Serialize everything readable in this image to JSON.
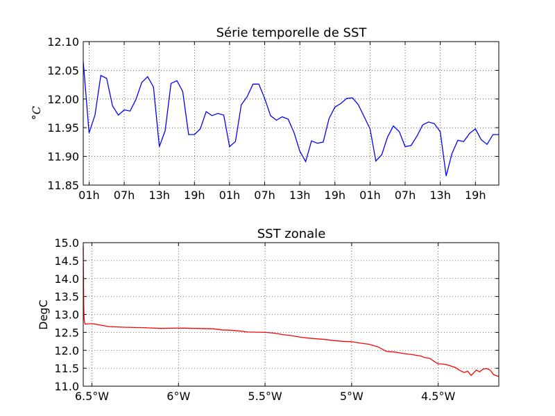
{
  "chart_data": [
    {
      "type": "line",
      "title": "Série temporelle de SST",
      "xlabel": "",
      "ylabel": "$^\\circ C$",
      "ylabel_display": "°C",
      "ylim": [
        11.85,
        12.1
      ],
      "yticks": [
        "11.85",
        "11.90",
        "11.95",
        "12.00",
        "12.05",
        "12.10"
      ],
      "xticks": [
        "01h",
        "07h",
        "13h",
        "19h",
        "01h",
        "07h",
        "13h",
        "19h",
        "01h",
        "07h",
        "13h",
        "19h"
      ],
      "xlim_hours": [
        0,
        71
      ],
      "grid": true,
      "color": "#0000ff",
      "series": [
        {
          "x": [
            0,
            1,
            2,
            3,
            4,
            5,
            6,
            7,
            8,
            9,
            10,
            11,
            12,
            13,
            14,
            15,
            16,
            17,
            18,
            19,
            20,
            21,
            22,
            23,
            24,
            25,
            26,
            27,
            28,
            29,
            30,
            31,
            32,
            33,
            34,
            35,
            36,
            37,
            38,
            39,
            40,
            41,
            42,
            43,
            44,
            45,
            46,
            47,
            48,
            49,
            50,
            51,
            52,
            53,
            54,
            55,
            56,
            57,
            58,
            59,
            60,
            61,
            62,
            63,
            64,
            65,
            66,
            67,
            68,
            69,
            70,
            71
          ],
          "y": [
            12.065,
            11.941,
            11.972,
            12.041,
            12.036,
            11.988,
            11.972,
            11.981,
            11.979,
            11.999,
            12.029,
            12.039,
            12.021,
            11.917,
            11.945,
            12.027,
            12.032,
            12.013,
            11.938,
            11.938,
            11.948,
            11.978,
            11.971,
            11.975,
            11.972,
            11.917,
            11.926,
            11.99,
            12.004,
            12.026,
            12.026,
            12.001,
            11.971,
            11.963,
            11.969,
            11.965,
            11.942,
            11.909,
            11.891,
            11.927,
            11.923,
            11.925,
            11.966,
            11.986,
            11.992,
            12.001,
            12.002,
            11.99,
            11.969,
            11.948,
            11.892,
            11.903,
            11.934,
            11.953,
            11.943,
            11.917,
            11.919,
            11.935,
            11.955,
            11.96,
            11.957,
            11.943,
            11.866,
            11.905,
            11.928,
            11.926,
            11.94,
            11.948,
            11.929,
            11.921,
            11.938,
            11.938
          ]
        }
      ]
    },
    {
      "type": "line",
      "title": "SST zonale",
      "xlabel": "",
      "ylabel": "DegC",
      "ylim": [
        11.0,
        15.0
      ],
      "yticks": [
        "11.0",
        "11.5",
        "12.0",
        "12.5",
        "13.0",
        "13.5",
        "14.0",
        "14.5",
        "15.0"
      ],
      "xticks": [
        {
          "value": -6.5,
          "label": "6.5°W"
        },
        {
          "value": -6.0,
          "label": "6°W"
        },
        {
          "value": -5.5,
          "label": "5.5°W"
        },
        {
          "value": -5.0,
          "label": "5°W"
        },
        {
          "value": -4.5,
          "label": "4.5°W"
        }
      ],
      "xlim": [
        -6.55,
        -4.15
      ],
      "grid": true,
      "color": "#ff0000",
      "series": [
        {
          "x": [
            -6.55,
            -6.549,
            -6.547,
            -6.545,
            -6.543,
            -6.54,
            -6.535,
            -6.52,
            -6.5,
            -6.48,
            -6.45,
            -6.4,
            -6.3,
            -6.2,
            -6.1,
            -6.0,
            -5.9,
            -5.8,
            -5.75,
            -5.7,
            -5.65,
            -5.6,
            -5.5,
            -5.45,
            -5.4,
            -5.35,
            -5.3,
            -5.25,
            -5.2,
            -5.15,
            -5.1,
            -5.05,
            -5.0,
            -4.95,
            -4.9,
            -4.85,
            -4.83,
            -4.8,
            -4.78,
            -4.75,
            -4.7,
            -4.65,
            -4.6,
            -4.58,
            -4.55,
            -4.52,
            -4.5,
            -4.48,
            -4.45,
            -4.42,
            -4.4,
            -4.38,
            -4.35,
            -4.33,
            -4.31,
            -4.3,
            -4.28,
            -4.26,
            -4.24,
            -4.22,
            -4.2,
            -4.18,
            -4.15
          ],
          "y": [
            14.9,
            14.3,
            13.3,
            12.9,
            12.8,
            12.74,
            12.73,
            12.74,
            12.74,
            12.73,
            12.7,
            12.66,
            12.64,
            12.63,
            12.61,
            12.62,
            12.61,
            12.6,
            12.57,
            12.56,
            12.54,
            12.51,
            12.5,
            12.48,
            12.44,
            12.41,
            12.37,
            12.34,
            12.32,
            12.3,
            12.27,
            12.25,
            12.24,
            12.2,
            12.17,
            12.1,
            12.05,
            11.97,
            11.96,
            11.95,
            11.91,
            11.88,
            11.84,
            11.8,
            11.78,
            11.68,
            11.62,
            11.62,
            11.6,
            11.55,
            11.52,
            11.45,
            11.38,
            11.42,
            11.3,
            11.35,
            11.45,
            11.4,
            11.48,
            11.49,
            11.45,
            11.32,
            11.27
          ]
        }
      ]
    }
  ]
}
